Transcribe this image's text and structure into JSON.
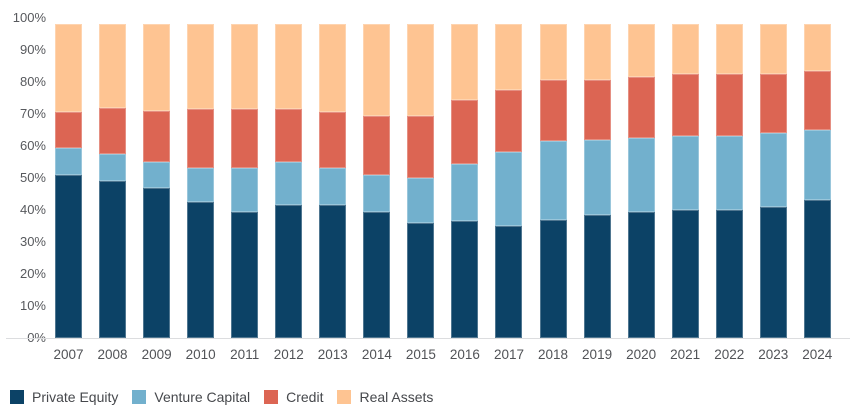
{
  "colors": {
    "private_equity": "#0c4266",
    "venture_capital": "#72b0cd",
    "credit": "#dc6553",
    "real_assets": "#fec492",
    "axis_text": "#57595d",
    "year_text": "#515357",
    "legend_text": "#46484c",
    "baseline": "#dcdddf",
    "background": "#ffffff"
  },
  "chart_data": {
    "type": "bar",
    "variant": "stacked-percent",
    "title": "",
    "xlabel": "",
    "ylabel": "",
    "grid": "none",
    "bar_total_percent": 98,
    "categories": [
      "2007",
      "2008",
      "2009",
      "2010",
      "2011",
      "2012",
      "2013",
      "2014",
      "2015",
      "2016",
      "2017",
      "2018",
      "2019",
      "2020",
      "2021",
      "2022",
      "2023",
      "2024"
    ],
    "series": [
      {
        "name": "Private Equity",
        "color": "#0c4266",
        "values": [
          51,
          49,
          47,
          42.5,
          39.5,
          41.5,
          41.5,
          39.5,
          36,
          36.5,
          35,
          37,
          38.5,
          39.5,
          40,
          40,
          41,
          43
        ]
      },
      {
        "name": "Venture Capital",
        "color": "#72b0cd",
        "values": [
          8.5,
          8.5,
          8,
          10.5,
          13.5,
          13.5,
          11.5,
          11.5,
          14,
          18,
          23,
          24.5,
          23.5,
          23,
          23,
          23,
          23,
          22
        ]
      },
      {
        "name": "Credit",
        "color": "#dc6553",
        "values": [
          11,
          14.5,
          16,
          18.5,
          18.5,
          16.5,
          17.5,
          18.5,
          19.5,
          20,
          19.5,
          19,
          18.5,
          19,
          19.5,
          19.5,
          18.5,
          18.5
        ]
      },
      {
        "name": "Real Assets",
        "color": "#fec492",
        "values": [
          27.5,
          26,
          27,
          26.5,
          26.5,
          26.5,
          27.5,
          28.5,
          28.5,
          23.5,
          20.5,
          17.5,
          17.5,
          16.5,
          15.5,
          15.5,
          15.5,
          14.5
        ]
      }
    ],
    "y_axis": {
      "min": 0,
      "max": 100,
      "tick_step": 10,
      "tick_labels": [
        "0%",
        "10%",
        "20%",
        "30%",
        "40%",
        "50%",
        "60%",
        "70%",
        "80%",
        "90%",
        "100%"
      ]
    },
    "legend": {
      "position": "bottom-left",
      "items": [
        "Private Equity",
        "Venture Capital",
        "Credit",
        "Real Assets"
      ]
    }
  }
}
